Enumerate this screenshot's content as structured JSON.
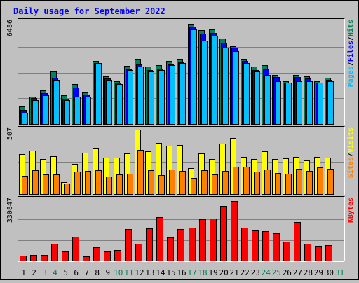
{
  "chart_data": {
    "type": "bar",
    "title": "Daily usage for September 2022",
    "colors": {
      "background": "#c0c0c0",
      "title": "#0000ff",
      "hits": "#00805c",
      "files": "#0000ff",
      "pages": "#00c0ff",
      "visits": "#ffff00",
      "sites": "#ff8000",
      "kbytes": "#ff0000",
      "weekend_label": "#00805c",
      "weekday_label": "#000000",
      "grid": "#808080"
    },
    "categories": [
      "1",
      "2",
      "3",
      "4",
      "5",
      "6",
      "7",
      "8",
      "9",
      "10",
      "11",
      "12",
      "13",
      "14",
      "15",
      "16",
      "17",
      "18",
      "19",
      "20",
      "21",
      "22",
      "23",
      "24",
      "25",
      "26",
      "27",
      "28",
      "29",
      "30",
      "31"
    ],
    "weekend_days": [
      3,
      4,
      10,
      11,
      17,
      18,
      24,
      25,
      31
    ],
    "panels": [
      {
        "id": "hits-files-pages",
        "max_label": "6486",
        "ymax": 6486,
        "legend": [
          {
            "text": "Pages",
            "color": "#00c0ff"
          },
          {
            "text": "/",
            "color": "#000000"
          },
          {
            "text": "Files",
            "color": "#0000ff"
          },
          {
            "text": "/",
            "color": "#000000"
          },
          {
            "text": "Hits",
            "color": "#00805c"
          }
        ],
        "series": [
          {
            "name": "Hits",
            "values": [
              1100,
              1700,
              2100,
              3300,
              1800,
              2500,
              2000,
              3950,
              3000,
              2700,
              3650,
              4100,
              3600,
              3700,
              3950,
              4100,
              6300,
              5900,
              5950,
              5400,
              4900,
              4100,
              3600,
              3700,
              3100,
              2700,
              3100,
              3000,
              2700,
              2900,
              null
            ]
          },
          {
            "name": "Files",
            "values": [
              900,
              1650,
              1950,
              2900,
              1600,
              2300,
              1850,
              3850,
              2850,
              2600,
              3450,
              3750,
              3400,
              3500,
              3750,
              3900,
              6150,
              5700,
              5750,
              5100,
              4800,
              3950,
              3400,
              3450,
              2950,
              2600,
              2950,
              2850,
              2600,
              2800,
              null
            ]
          },
          {
            "name": "Pages",
            "values": [
              700,
              1500,
              1800,
              2800,
              1500,
              1700,
              1700,
              3850,
              2800,
              2500,
              3400,
              3600,
              3300,
              3400,
              3700,
              3850,
              5950,
              5250,
              5550,
              4800,
              4600,
              3850,
              3300,
              3100,
              2700,
              2600,
              2700,
              2700,
              2600,
              2700,
              null
            ]
          }
        ]
      },
      {
        "id": "visits-sites",
        "max_label": "507",
        "ymax": 507,
        "legend": [
          {
            "text": "Sites",
            "color": "#ff8000"
          },
          {
            "text": "/",
            "color": "#000000"
          },
          {
            "text": "Visits",
            "color": "#ffff00"
          }
        ],
        "series": [
          {
            "name": "Visits",
            "values": [
              310,
              340,
              275,
              295,
              90,
              235,
              320,
              360,
              285,
              285,
              315,
              500,
              335,
              400,
              375,
              380,
              200,
              315,
              270,
              390,
              435,
              290,
              270,
              330,
              270,
              280,
              290,
              260,
              290,
              285,
              null
            ]
          },
          {
            "name": "Sites",
            "values": [
              140,
              185,
              150,
              150,
              80,
              175,
              180,
              185,
              135,
              150,
              160,
              345,
              185,
              145,
              190,
              180,
              125,
              185,
              150,
              180,
              215,
              210,
              175,
              190,
              165,
              160,
              195,
              180,
              205,
              195,
              null
            ]
          }
        ]
      },
      {
        "id": "kbytes",
        "max_label": "330847",
        "ymax": 330847,
        "legend": [
          {
            "text": "KBytes",
            "color": "#ff0000"
          }
        ],
        "series": [
          {
            "name": "KBytes",
            "values": [
              28000,
              31000,
              30000,
              92000,
              50000,
              128000,
              22000,
              70000,
              47000,
              55000,
              168000,
              92000,
              172000,
              232000,
              125000,
              170000,
              175000,
              222000,
              224000,
              293000,
              318000,
              175000,
              162000,
              158000,
              147000,
              100000,
              206000,
              92000,
              80000,
              84000,
              null
            ]
          }
        ]
      }
    ]
  }
}
